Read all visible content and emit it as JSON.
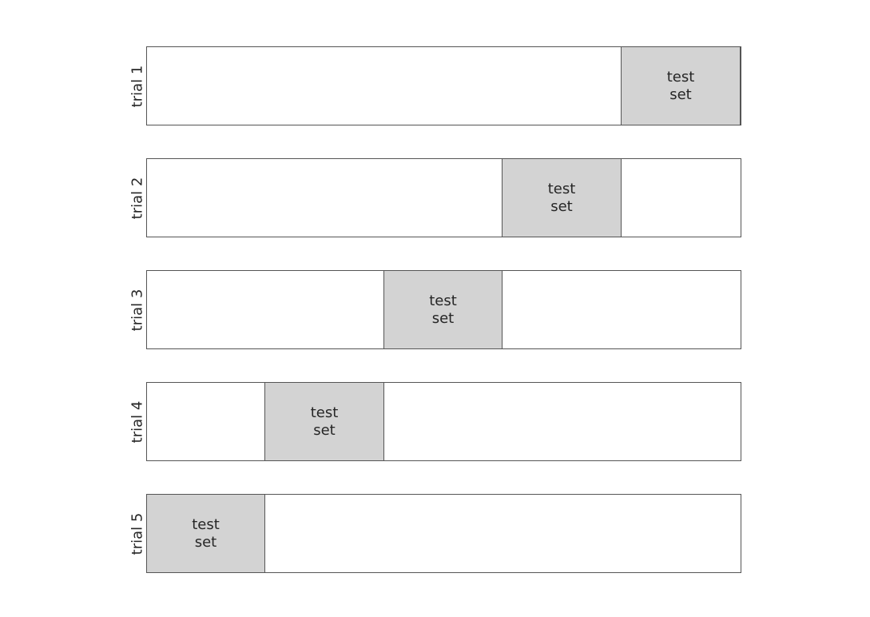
{
  "diagram": {
    "fold_count": 5,
    "test_fill_color": "#d3d3d3",
    "border_color": "#555555",
    "background_color": "#ffffff",
    "trials": [
      {
        "label": "trial 1",
        "test_label": "test\nset",
        "test_fold": 5
      },
      {
        "label": "trial 2",
        "test_label": "test\nset",
        "test_fold": 4
      },
      {
        "label": "trial 3",
        "test_label": "test\nset",
        "test_fold": 3
      },
      {
        "label": "trial 4",
        "test_label": "test\nset",
        "test_fold": 2
      },
      {
        "label": "trial 5",
        "test_label": "test\nset",
        "test_fold": 1
      }
    ]
  }
}
